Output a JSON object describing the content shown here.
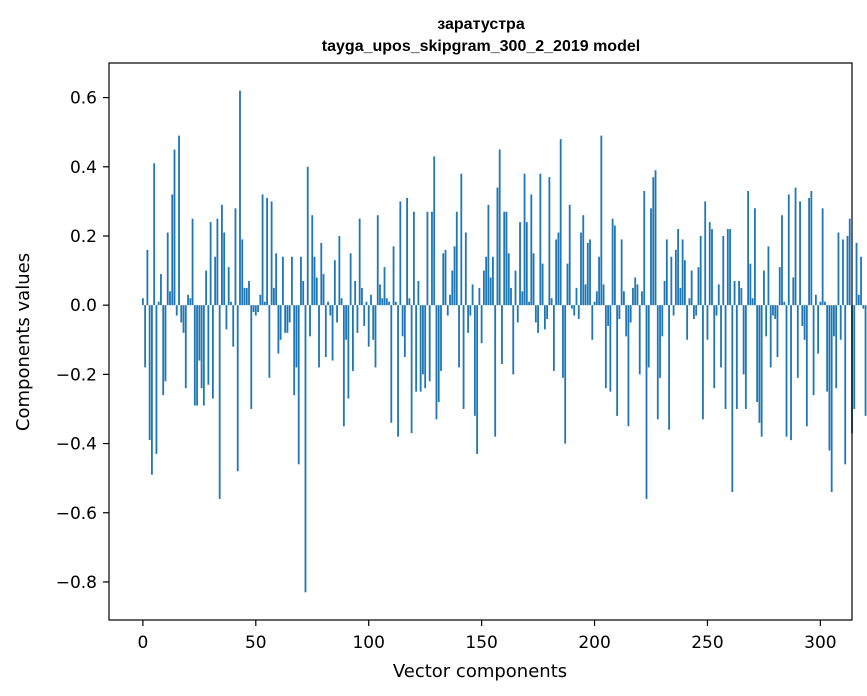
{
  "chart_data": {
    "type": "bar",
    "title": "заратустра",
    "subtitle": "tayga_upos_skipgram_300_2_2019 model",
    "xlabel": "Vector components",
    "ylabel": "Components values",
    "xlim": [
      -15,
      314
    ],
    "ylim": [
      -0.91,
      0.7
    ],
    "xticks": [
      0,
      50,
      100,
      150,
      200,
      250,
      300
    ],
    "yticks": [
      -0.8,
      -0.6,
      -0.4,
      -0.2,
      0.0,
      0.2,
      0.4,
      0.6
    ],
    "ytick_labels": [
      "−0.8",
      "−0.6",
      "−0.4",
      "−0.2",
      "0.0",
      "0.2",
      "0.4",
      "0.6"
    ],
    "bar_color": "#1f77b4",
    "values": [
      0.02,
      -0.18,
      0.16,
      -0.39,
      -0.49,
      0.41,
      -0.43,
      0.01,
      0.09,
      -0.26,
      -0.22,
      0.21,
      0.04,
      0.32,
      0.45,
      -0.03,
      0.49,
      -0.05,
      -0.08,
      -0.24,
      0.03,
      0.02,
      0.25,
      -0.29,
      -0.29,
      -0.16,
      -0.24,
      -0.29,
      0.1,
      -0.23,
      0.24,
      -0.27,
      0.14,
      0.25,
      -0.56,
      0.29,
      0.21,
      -0.07,
      0.11,
      0.01,
      -0.12,
      0.28,
      -0.48,
      0.62,
      0.19,
      0.05,
      0.05,
      0.07,
      -0.3,
      -0.02,
      -0.03,
      -0.02,
      0.03,
      0.32,
      0.01,
      0.31,
      -0.21,
      0.3,
      0.05,
      0.15,
      -0.14,
      -0.1,
      0.14,
      -0.08,
      -0.08,
      -0.05,
      0.14,
      -0.26,
      -0.18,
      -0.46,
      0.14,
      0.07,
      -0.83,
      0.4,
      -0.09,
      0.26,
      0.14,
      0.08,
      -0.18,
      0.18,
      0.09,
      -0.15,
      0.01,
      -0.03,
      -0.16,
      0.13,
      -0.05,
      0.2,
      0.02,
      -0.35,
      -0.1,
      -0.27,
      0.15,
      -0.19,
      0.07,
      -0.08,
      0.25,
      0.05,
      -0.06,
      0.01,
      -0.12,
      0.03,
      -0.1,
      -0.18,
      0.26,
      0.06,
      0.02,
      0.11,
      0.02,
      0.01,
      -0.34,
      0.17,
      0.01,
      -0.38,
      0.3,
      -0.09,
      -0.15,
      0.31,
      0.02,
      -0.37,
      0.27,
      -0.25,
      0.07,
      -0.25,
      -0.2,
      -0.24,
      0.27,
      -0.22,
      0.27,
      0.43,
      -0.33,
      -0.28,
      -0.19,
      0.15,
      0.16,
      -0.03,
      0.03,
      0.1,
      0.17,
      0.27,
      -0.18,
      0.38,
      -0.3,
      0.21,
      -0.08,
      -0.03,
      0.06,
      -0.32,
      -0.43,
      0.05,
      -0.11,
      0.1,
      0.14,
      0.29,
      0.08,
      0.14,
      -0.38,
      0.34,
      0.45,
      -0.17,
      0.27,
      0.27,
      0.15,
      0.05,
      -0.2,
      0.1,
      -0.05,
      0.24,
      0.04,
      0.38,
      0.24,
      0.01,
      0.32,
      0.15,
      -0.05,
      -0.08,
      0.38,
      0.12,
      -0.07,
      -0.04,
      0.37,
      0.02,
      -0.19,
      0.19,
      0.21,
      0.48,
      -0.21,
      -0.4,
      0.12,
      0.29,
      -0.01,
      -0.03,
      0.05,
      -0.04,
      0.21,
      0.26,
      0.06,
      0.18,
      0.19,
      -0.1,
      0.01,
      0.04,
      0.14,
      0.49,
      0.06,
      -0.24,
      -0.06,
      -0.25,
      0.25,
      0.23,
      -0.32,
      -0.04,
      0.19,
      0.04,
      -0.09,
      -0.35,
      -0.05,
      0.05,
      0.08,
      0.06,
      -0.2,
      0.04,
      0.33,
      -0.56,
      -0.18,
      0.28,
      0.37,
      0.39,
      -0.33,
      -0.21,
      -0.09,
      0.07,
      0.19,
      -0.36,
      0.14,
      -0.03,
      0.16,
      0.22,
      0.05,
      0.19,
      0.13,
      -0.1,
      0.02,
      0.1,
      -0.04,
      -0.03,
      0.11,
      0.2,
      -0.33,
      0.3,
      -0.1,
      0.24,
      0.22,
      -0.24,
      -0.03,
      0.06,
      -0.18,
      0.2,
      -0.3,
      0.22,
      0.22,
      -0.54,
      0.07,
      -0.3,
      0.07,
      0.05,
      -0.2,
      -0.3,
      0.33,
      0.12,
      0.02,
      0.28,
      -0.28,
      -0.34,
      -0.38,
      0.1,
      -0.09,
      0.17,
      -0.18,
      -0.03,
      -0.04,
      -0.15,
      0.11,
      0.26,
      0.01,
      -0.38,
      0.32,
      -0.39,
      0.08,
      0.34,
      -0.21,
      0.3,
      -0.06,
      -0.1,
      -0.35,
      0.31,
      0.33,
      -0.26,
      0.03,
      -0.14,
      0.01,
      0.28,
      0.01,
      -0.25,
      -0.42,
      -0.54,
      -0.09,
      -0.24,
      0.21,
      -0.1,
      0.19,
      -0.46,
      0.2,
      0.25,
      -0.37,
      -0.3,
      0.18,
      0.03,
      0.14,
      -0.01,
      -0.32
    ]
  }
}
